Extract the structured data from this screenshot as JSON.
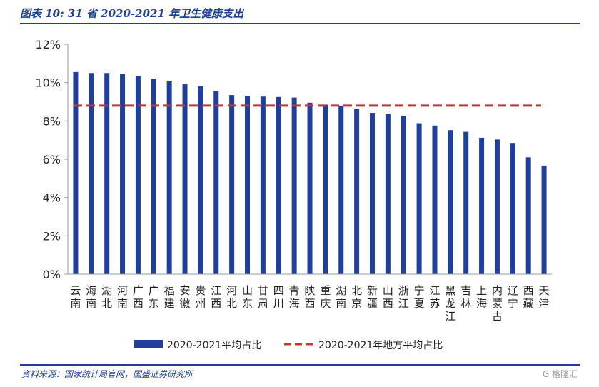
{
  "figure": {
    "title": "图表 10:  31 省 2020-2021 年卫生健康支出",
    "source": "资料来源：国家统计局官网，国盛证券研究所",
    "watermark": "G 格隆汇"
  },
  "colors": {
    "bar": "#1f3f9a",
    "avg_line": "#c0392b",
    "axis": "#999999"
  },
  "chart_data": {
    "type": "bar",
    "title": "",
    "xlabel": "",
    "ylabel": "",
    "ylim": [
      0,
      12
    ],
    "yticks": [
      "0%",
      "2%",
      "4%",
      "6%",
      "8%",
      "10%",
      "12%"
    ],
    "grid": false,
    "legend_position": "bottom",
    "categories": [
      "云南",
      "海南",
      "湖北",
      "河南",
      "广西",
      "广东",
      "福建",
      "安徽",
      "贵州",
      "江西",
      "河北",
      "山东",
      "甘肃",
      "四川",
      "青海",
      "陕西",
      "重庆",
      "湖南",
      "北京",
      "新疆",
      "山西",
      "浙江",
      "宁夏",
      "江苏",
      "黑龙江",
      "吉林",
      "上海",
      "内蒙古",
      "辽宁",
      "西藏",
      "天津"
    ],
    "series": [
      {
        "name": "2020-2021平均占比",
        "type": "bar",
        "values": [
          10.55,
          10.5,
          10.5,
          10.45,
          10.35,
          10.18,
          10.1,
          9.92,
          9.8,
          9.55,
          9.35,
          9.3,
          9.27,
          9.25,
          9.22,
          8.95,
          8.85,
          8.8,
          8.65,
          8.42,
          8.38,
          8.27,
          7.88,
          7.76,
          7.52,
          7.43,
          7.12,
          7.03,
          6.85,
          6.1,
          5.67
        ]
      },
      {
        "name": "2020-2021年地方平均占比",
        "type": "line",
        "value": 8.8
      }
    ]
  }
}
